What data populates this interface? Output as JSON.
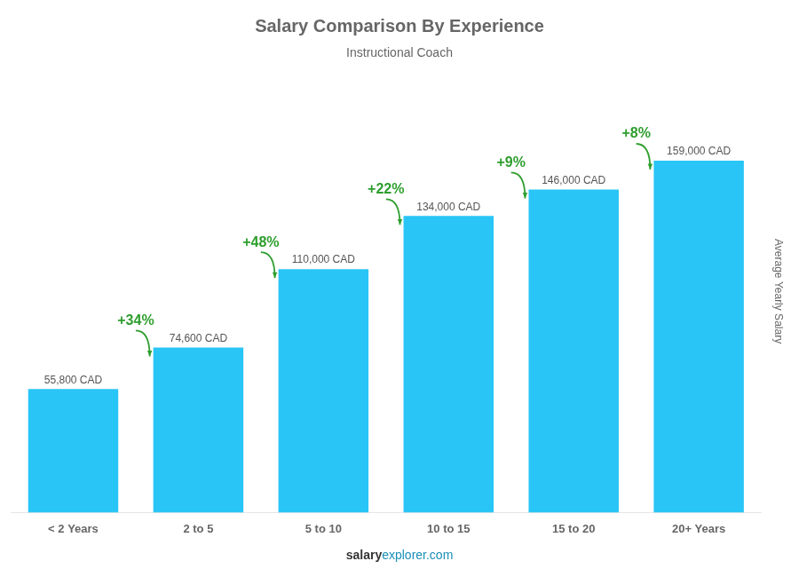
{
  "chart_data": {
    "type": "bar",
    "title": "Salary Comparison By Experience",
    "subtitle": "Instructional Coach",
    "categories": [
      "< 2 Years",
      "2 to 5",
      "5 to 10",
      "10 to 15",
      "15 to 20",
      "20+ Years"
    ],
    "values": [
      55800,
      74600,
      110000,
      134000,
      146000,
      159000
    ],
    "value_labels": [
      "55,800 CAD",
      "74,600 CAD",
      "110,000 CAD",
      "134,000 CAD",
      "146,000 CAD",
      "159,000 CAD"
    ],
    "data_labels": true,
    "color": "#29c5f6",
    "ylim": [
      0,
      200000
    ],
    "ylabel": "Average Yearly Salary",
    "annotations": [
      "+34%",
      "+48%",
      "+22%",
      "+9%",
      "+8%"
    ],
    "footer": [
      "salary",
      "explorer.com"
    ],
    "grid": false,
    "tick_labels": "x"
  }
}
